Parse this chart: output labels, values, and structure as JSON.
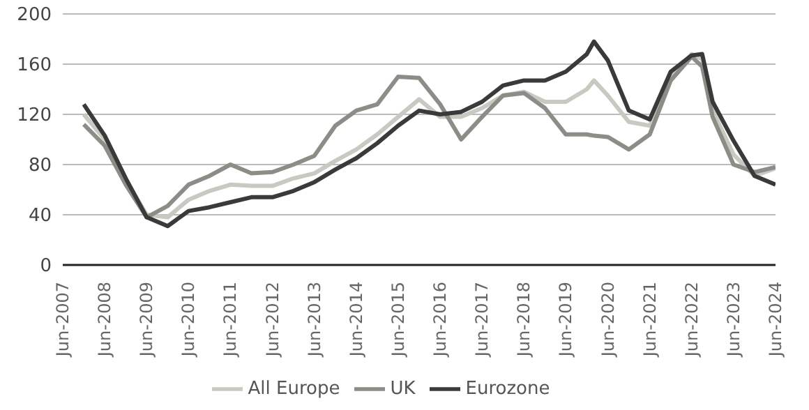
{
  "chart_data": {
    "type": "line",
    "x": [
      "2007-12",
      "2008-06",
      "2008-12",
      "2009-06",
      "2009-12",
      "2010-06",
      "2010-12",
      "2011-06",
      "2011-12",
      "2012-06",
      "2012-12",
      "2013-06",
      "2013-12",
      "2014-06",
      "2014-12",
      "2015-06",
      "2015-12",
      "2016-06",
      "2016-12",
      "2017-06",
      "2017-12",
      "2018-06",
      "2018-12",
      "2019-06",
      "2019-12",
      "2020-02",
      "2020-06",
      "2020-12",
      "2021-06",
      "2021-12",
      "2022-06",
      "2022-09",
      "2022-12",
      "2023-06",
      "2023-12",
      "2024-06"
    ],
    "series": [
      {
        "name": "All Europe",
        "color": "#c8c9c0",
        "values": [
          120,
          100,
          68,
          40,
          38,
          52,
          59,
          64,
          63,
          63,
          69,
          73,
          83,
          92,
          104,
          118,
          132,
          118,
          118,
          125,
          135,
          138,
          130,
          130,
          140,
          147,
          135,
          114,
          111,
          149,
          168,
          164,
          123,
          88,
          71,
          77
        ]
      },
      {
        "name": "UK",
        "color": "#8c8d87",
        "values": [
          112,
          95,
          64,
          38,
          47,
          64,
          71,
          80,
          73,
          74,
          80,
          87,
          111,
          123,
          128,
          150,
          149,
          128,
          100,
          118,
          135,
          137,
          125,
          104,
          104,
          103,
          102,
          92,
          104,
          147,
          166,
          158,
          118,
          80,
          74,
          78
        ]
      },
      {
        "name": "Eurozone",
        "color": "#3a3a3a",
        "values": [
          128,
          103,
          69,
          38,
          31,
          43,
          46,
          50,
          54,
          54,
          59,
          66,
          76,
          85,
          97,
          111,
          123,
          120,
          122,
          130,
          143,
          147,
          147,
          154,
          168,
          178,
          163,
          123,
          116,
          154,
          167,
          168,
          130,
          99,
          71,
          64
        ]
      }
    ],
    "xlim": [
      "2007-06",
      "2024-06"
    ],
    "xticks": [
      {
        "value": "2007-06",
        "label": "Jun-2007"
      },
      {
        "value": "2008-06",
        "label": "Jun-2008"
      },
      {
        "value": "2009-06",
        "label": "Jun-2009"
      },
      {
        "value": "2010-06",
        "label": "Jun-2010"
      },
      {
        "value": "2011-06",
        "label": "Jun-2011"
      },
      {
        "value": "2012-06",
        "label": "Jun-2012"
      },
      {
        "value": "2013-06",
        "label": "Jun-2013"
      },
      {
        "value": "2014-06",
        "label": "Jun-2014"
      },
      {
        "value": "2015-06",
        "label": "Jun-2015"
      },
      {
        "value": "2016-06",
        "label": "Jun-2016"
      },
      {
        "value": "2017-06",
        "label": "Jun-2017"
      },
      {
        "value": "2018-06",
        "label": "Jun-2018"
      },
      {
        "value": "2019-06",
        "label": "Jun-2019"
      },
      {
        "value": "2020-06",
        "label": "Jun-2020"
      },
      {
        "value": "2021-06",
        "label": "Jun-2021"
      },
      {
        "value": "2022-06",
        "label": "Jun-2022"
      },
      {
        "value": "2023-06",
        "label": "Jun-2023"
      },
      {
        "value": "2024-06",
        "label": "Jun-2024"
      }
    ],
    "ylim": [
      0,
      200
    ],
    "yticks": [
      0,
      40,
      80,
      120,
      160,
      200
    ],
    "grid": "y",
    "legend": "bottom",
    "marker": "none",
    "line_style": "solid"
  }
}
